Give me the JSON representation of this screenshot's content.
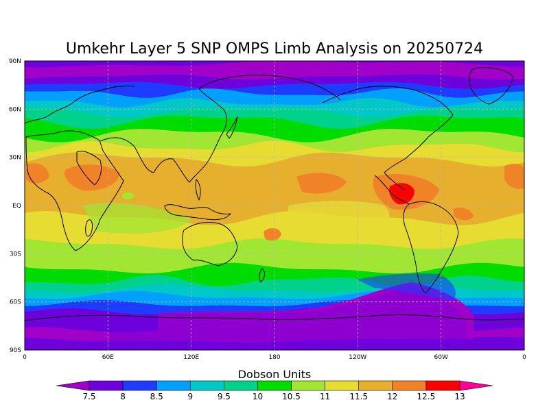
{
  "title": "Umkehr Layer 5 SNP OMPS Limb Analysis on 20250724",
  "colorbar": {
    "label": "Dobson Units",
    "ticks": [
      "7.5",
      "8",
      "8.5",
      "9",
      "9.5",
      "10",
      "10.5",
      "11",
      "11.5",
      "12",
      "12.5",
      "13"
    ],
    "colors": [
      "#a000c8",
      "#6e00dc",
      "#1e3cff",
      "#00a0ff",
      "#00c8c8",
      "#00d28c",
      "#00dc00",
      "#a0e632",
      "#e6dc32",
      "#e6af2d",
      "#f08228",
      "#fa0000",
      "#ff0096"
    ]
  },
  "x_labels": [
    "0",
    "60E",
    "120E",
    "180",
    "120W",
    "60W",
    "0"
  ],
  "y_labels": [
    "90N",
    "60N",
    "30N",
    "EQ",
    "30S",
    "60S",
    "90S"
  ]
}
